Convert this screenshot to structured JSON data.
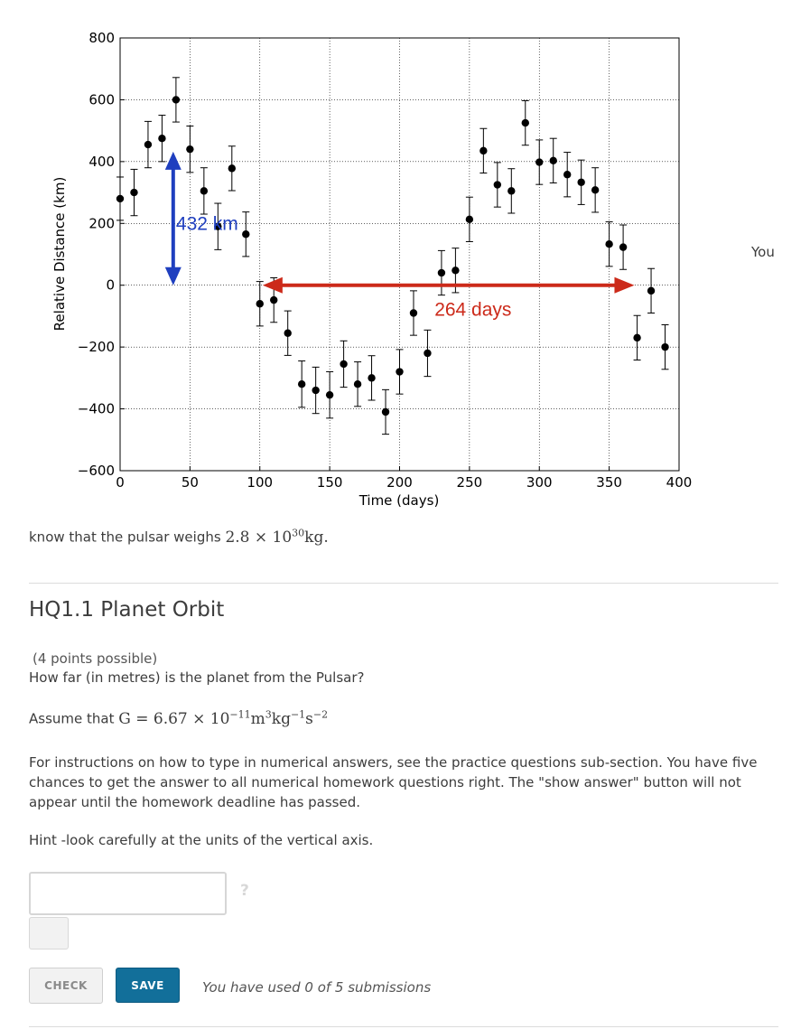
{
  "chart_data": {
    "type": "scatter",
    "xlabel": "Time (days)",
    "ylabel": "Relative Distance (km)",
    "xlim": [
      0,
      400
    ],
    "ylim": [
      -600,
      800
    ],
    "xticks": [
      "0",
      "50",
      "100",
      "150",
      "200",
      "250",
      "300",
      "350",
      "400"
    ],
    "yticks": [
      "800",
      "600",
      "400",
      "200",
      "0",
      "−200",
      "−400",
      "−600"
    ],
    "grid": true,
    "points": [
      {
        "x": 0,
        "y": 280,
        "err": 70
      },
      {
        "x": 10,
        "y": 300,
        "err": 75
      },
      {
        "x": 20,
        "y": 455,
        "err": 75
      },
      {
        "x": 30,
        "y": 475,
        "err": 75
      },
      {
        "x": 40,
        "y": 600,
        "err": 72
      },
      {
        "x": 50,
        "y": 440,
        "err": 75
      },
      {
        "x": 60,
        "y": 305,
        "err": 75
      },
      {
        "x": 70,
        "y": 190,
        "err": 75
      },
      {
        "x": 80,
        "y": 378,
        "err": 72
      },
      {
        "x": 90,
        "y": 165,
        "err": 72
      },
      {
        "x": 100,
        "y": -60,
        "err": 72
      },
      {
        "x": 110,
        "y": -48,
        "err": 72
      },
      {
        "x": 120,
        "y": -155,
        "err": 72
      },
      {
        "x": 130,
        "y": -320,
        "err": 75
      },
      {
        "x": 140,
        "y": -340,
        "err": 75
      },
      {
        "x": 150,
        "y": -355,
        "err": 75
      },
      {
        "x": 160,
        "y": -255,
        "err": 75
      },
      {
        "x": 170,
        "y": -320,
        "err": 72
      },
      {
        "x": 180,
        "y": -300,
        "err": 72
      },
      {
        "x": 190,
        "y": -410,
        "err": 72
      },
      {
        "x": 200,
        "y": -280,
        "err": 72
      },
      {
        "x": 210,
        "y": -90,
        "err": 72
      },
      {
        "x": 220,
        "y": -220,
        "err": 75
      },
      {
        "x": 230,
        "y": 40,
        "err": 72
      },
      {
        "x": 240,
        "y": 48,
        "err": 72
      },
      {
        "x": 250,
        "y": 213,
        "err": 72
      },
      {
        "x": 260,
        "y": 435,
        "err": 72
      },
      {
        "x": 270,
        "y": 325,
        "err": 72
      },
      {
        "x": 280,
        "y": 305,
        "err": 72
      },
      {
        "x": 290,
        "y": 525,
        "err": 72
      },
      {
        "x": 300,
        "y": 398,
        "err": 72
      },
      {
        "x": 310,
        "y": 403,
        "err": 72
      },
      {
        "x": 320,
        "y": 358,
        "err": 72
      },
      {
        "x": 330,
        "y": 333,
        "err": 72
      },
      {
        "x": 340,
        "y": 308,
        "err": 72
      },
      {
        "x": 350,
        "y": 133,
        "err": 72
      },
      {
        "x": 360,
        "y": 123,
        "err": 72
      },
      {
        "x": 370,
        "y": -170,
        "err": 72
      },
      {
        "x": 380,
        "y": -18,
        "err": 72
      },
      {
        "x": 390,
        "y": -200,
        "err": 72
      }
    ],
    "annotations": [
      {
        "label": "432 km",
        "color": "#1f3fbf",
        "x": 38,
        "y_from": 432,
        "y_to": 0,
        "label_x": 40,
        "label_y": 200
      },
      {
        "label": "264 days",
        "color": "#cc2a1a",
        "y": 0,
        "x_from": 102,
        "x_to": 368,
        "label_x": 225,
        "label_y": -75
      }
    ]
  },
  "aside_text": "You",
  "intro": {
    "before": "know that the pulsar weighs ",
    "math_base": "2.8 × 10",
    "math_exp": "30",
    "math_unit": "kg."
  },
  "question": {
    "title": "HQ1.1 Planet Orbit",
    "points": "(4 points possible)",
    "prompt": "How far (in metres) is the planet from the Pulsar?",
    "assume_before": "Assume that ",
    "assume_math": {
      "lhs": "G = 6.67 × 10",
      "exp1": "−11",
      "m": "m",
      "exp2": "3",
      "kg": "kg",
      "exp3": "−1",
      "s": "s",
      "exp4": "−2"
    },
    "instructions": "For instructions on how to type in numerical answers, see the practice questions sub-section. You have five chances to get the answer to all numerical homework questions right. The \"show answer\" button will not appear until the homework deadline has passed.",
    "hint": "Hint -look carefully at the units of the vertical axis.",
    "answer_value": "",
    "help_glyph": "?"
  },
  "actions": {
    "check_label": "CHECK",
    "save_label": "SAVE",
    "submissions_text": "You have used 0 of 5 submissions"
  }
}
